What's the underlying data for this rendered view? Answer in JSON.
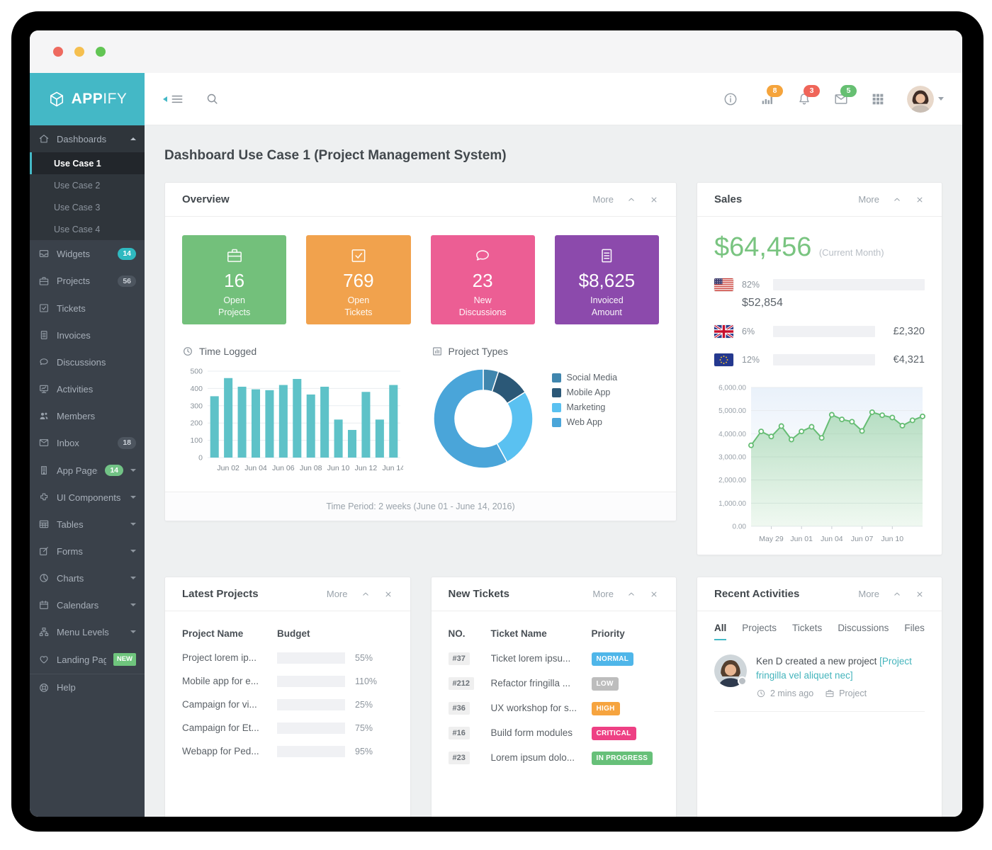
{
  "colors": {
    "teal": "#44b8c6",
    "sidebar": "#3a414a",
    "main_bg": "#eef0f1",
    "green": "#79c480"
  },
  "titlebar": {
    "lights": [
      "#ee6a5f",
      "#f5bf4f",
      "#62c554"
    ]
  },
  "logo": {
    "bold": "APP",
    "light": "IFY"
  },
  "topbar": {
    "icons": [
      {
        "name": "info",
        "badge": null,
        "badge_color": null
      },
      {
        "name": "stats",
        "badge": "8",
        "badge_color": "#f5a43c"
      },
      {
        "name": "bell",
        "badge": "3",
        "badge_color": "#ef6559"
      },
      {
        "name": "mail",
        "badge": "5",
        "badge_color": "#66bf72"
      },
      {
        "name": "grid",
        "badge": null,
        "badge_color": null
      }
    ]
  },
  "sidebar": {
    "items": [
      {
        "id": "dashboards",
        "icon": "home",
        "label": "Dashboards",
        "caret": "up",
        "children": [
          {
            "label": "Use Case 1",
            "active": true
          },
          {
            "label": "Use Case 2",
            "active": false
          },
          {
            "label": "Use Case 3",
            "active": false
          },
          {
            "label": "Use Case 4",
            "active": false
          }
        ]
      },
      {
        "id": "widgets",
        "icon": "inbox",
        "label": "Widgets",
        "badge": {
          "text": "14",
          "style": "teal"
        }
      },
      {
        "id": "projects",
        "icon": "briefcase",
        "label": "Projects",
        "badge": {
          "text": "56",
          "style": "gray"
        }
      },
      {
        "id": "tickets",
        "icon": "check-square",
        "label": "Tickets"
      },
      {
        "id": "invoices",
        "icon": "document",
        "label": "Invoices"
      },
      {
        "id": "discussions",
        "icon": "chat",
        "label": "Discussions"
      },
      {
        "id": "activities",
        "icon": "board",
        "label": "Activities"
      },
      {
        "id": "members",
        "icon": "users",
        "label": "Members"
      },
      {
        "id": "inbox",
        "icon": "envelope",
        "label": "Inbox",
        "badge": {
          "text": "18",
          "style": "gray"
        }
      },
      {
        "id": "app-pages",
        "icon": "building",
        "label": "App Pages",
        "badge": {
          "text": "14",
          "style": "green"
        },
        "caret": "down"
      },
      {
        "id": "ui-components",
        "icon": "puzzle",
        "label": "UI Components",
        "caret": "down"
      },
      {
        "id": "tables",
        "icon": "table",
        "label": "Tables",
        "caret": "down"
      },
      {
        "id": "forms",
        "icon": "pen-square",
        "label": "Forms",
        "caret": "down"
      },
      {
        "id": "charts",
        "icon": "pie",
        "label": "Charts",
        "caret": "down"
      },
      {
        "id": "calendars",
        "icon": "calendar",
        "label": "Calendars",
        "caret": "down"
      },
      {
        "id": "menu-levels",
        "icon": "sitemap",
        "label": "Menu Levels",
        "caret": "down"
      },
      {
        "id": "landing-page",
        "icon": "heart",
        "label": "Landing Page",
        "badge": {
          "text": "NEW",
          "style": "new"
        }
      },
      {
        "id": "help",
        "icon": "lifebuoy",
        "label": "Help",
        "divider": true
      }
    ]
  },
  "page": {
    "title": "Dashboard Use Case 1 (Project Management System)"
  },
  "overview": {
    "title": "Overview",
    "more": "More",
    "cards": [
      {
        "icon": "briefcase",
        "value": "16",
        "label": "Open\nProjects",
        "color": "#73c07b"
      },
      {
        "icon": "check-square",
        "value": "769",
        "label": "Open\nTickets",
        "color": "#f1a24d"
      },
      {
        "icon": "chat",
        "value": "23",
        "label": "New\nDiscussions",
        "color": "#ec5e94"
      },
      {
        "icon": "document",
        "value": "$8,625",
        "label": "Invoiced\nAmount",
        "color": "#8c4aac"
      }
    ],
    "time_logged_title": "Time Logged",
    "project_types_title": "Project Types",
    "footer": "Time Period: 2 weeks (June 01 - June 14, 2016)"
  },
  "chart_data": [
    {
      "id": "time_logged",
      "type": "bar",
      "title": "Time Logged",
      "categories": [
        "Jun 01",
        "Jun 02",
        "Jun 03",
        "Jun 04",
        "Jun 05",
        "Jun 06",
        "Jun 07",
        "Jun 08",
        "Jun 09",
        "Jun 10",
        "Jun 11",
        "Jun 12",
        "Jun 13",
        "Jun 14"
      ],
      "values": [
        355,
        460,
        410,
        395,
        390,
        420,
        455,
        365,
        410,
        220,
        160,
        380,
        220,
        420
      ],
      "x_tick_labels": [
        "Jun 02",
        "Jun 04",
        "Jun 06",
        "Jun 08",
        "Jun 10",
        "Jun 12",
        "Jun 14"
      ],
      "ylim": [
        0,
        500
      ],
      "yticks": [
        0,
        100,
        200,
        300,
        400,
        500
      ],
      "bar_color": "#5ec2c8",
      "grid": true
    },
    {
      "id": "project_types",
      "type": "donut",
      "title": "Project Types",
      "legend_position": "right",
      "slices": [
        {
          "label": "Social Media",
          "value": 5,
          "color": "#4086ae"
        },
        {
          "label": "Mobile App",
          "value": 11,
          "color": "#2b5877"
        },
        {
          "label": "Marketing",
          "value": 26,
          "color": "#5ac1f1"
        },
        {
          "label": "Web App",
          "value": 58,
          "color": "#4aa5d9"
        }
      ]
    },
    {
      "id": "sales_trend",
      "type": "area-line",
      "title": "Sales (Current Month)",
      "values": [
        3500,
        4100,
        3880,
        4330,
        3750,
        4100,
        4300,
        3820,
        4820,
        4620,
        4520,
        4120,
        4930,
        4800,
        4700,
        4350,
        4580,
        4750
      ],
      "x_tick_labels": [
        "May 29",
        "Jun 01",
        "Jun 04",
        "Jun 07",
        "Jun 10"
      ],
      "x_tick_indices": [
        2,
        5,
        8,
        11,
        14
      ],
      "ylim": [
        0,
        6000
      ],
      "ytick_labels": [
        "0.00",
        "1,000.00",
        "2,000.00",
        "3,000.00",
        "4,000.00",
        "5,000.00",
        "6,000.00"
      ],
      "line_color": "#66bd74",
      "grid": true
    }
  ],
  "sales": {
    "title": "Sales",
    "more": "More",
    "amount": "$64,456",
    "amount_note": "(Current Month)",
    "regions": [
      {
        "flag": "us",
        "percent": "82%",
        "value": 82,
        "amount": "$52,854",
        "amount_below": true
      },
      {
        "flag": "uk",
        "percent": "6%",
        "value": 6,
        "amount": "£2,320",
        "amount_below": false
      },
      {
        "flag": "eu",
        "percent": "12%",
        "value": 12,
        "amount": "€4,321",
        "amount_below": false
      }
    ]
  },
  "latest_projects": {
    "title": "Latest Projects",
    "more": "More",
    "columns": [
      "Project Name",
      "Budget"
    ],
    "rows": [
      {
        "name": "Project lorem ip...",
        "value": 55,
        "percent": "55%",
        "color": "#4cb0e8"
      },
      {
        "name": "Mobile app for e...",
        "value": 110,
        "percent": "110%",
        "color": "#f3705f"
      },
      {
        "name": "Campaign for vi...",
        "value": 25,
        "percent": "25%",
        "color": "#4cb0e8"
      },
      {
        "name": "Campaign for Et...",
        "value": 75,
        "percent": "75%",
        "color": "#4cb0e8"
      },
      {
        "name": "Webapp for Ped...",
        "value": 95,
        "percent": "95%",
        "color": "#f4a636"
      }
    ]
  },
  "new_tickets": {
    "title": "New Tickets",
    "more": "More",
    "columns": [
      "NO.",
      "Ticket Name",
      "Priority"
    ],
    "rows": [
      {
        "no": "#37",
        "name": "Ticket lorem ipsu...",
        "priority": "NORMAL",
        "color": "#4fb6e9"
      },
      {
        "no": "#212",
        "name": "Refactor fringilla ...",
        "priority": "LOW",
        "color": "#bdbdbd"
      },
      {
        "no": "#36",
        "name": "UX workshop for s...",
        "priority": "HIGH",
        "color": "#f6a43f"
      },
      {
        "no": "#16",
        "name": "Build form modules",
        "priority": "CRITICAL",
        "color": "#ee4084"
      },
      {
        "no": "#23",
        "name": "Lorem ipsum dolo...",
        "priority": "IN PROGRESS",
        "color": "#67c079"
      }
    ]
  },
  "recent_activities": {
    "title": "Recent Activities",
    "more": "More",
    "tabs": [
      "All",
      "Projects",
      "Tickets",
      "Discussions",
      "Files"
    ],
    "active_tab": "All",
    "items": [
      {
        "user": "Ken D",
        "action": "created a new project",
        "link": "[Project fringilla vel aliquet nec]",
        "time": "2 mins ago",
        "type": "Project"
      }
    ]
  }
}
